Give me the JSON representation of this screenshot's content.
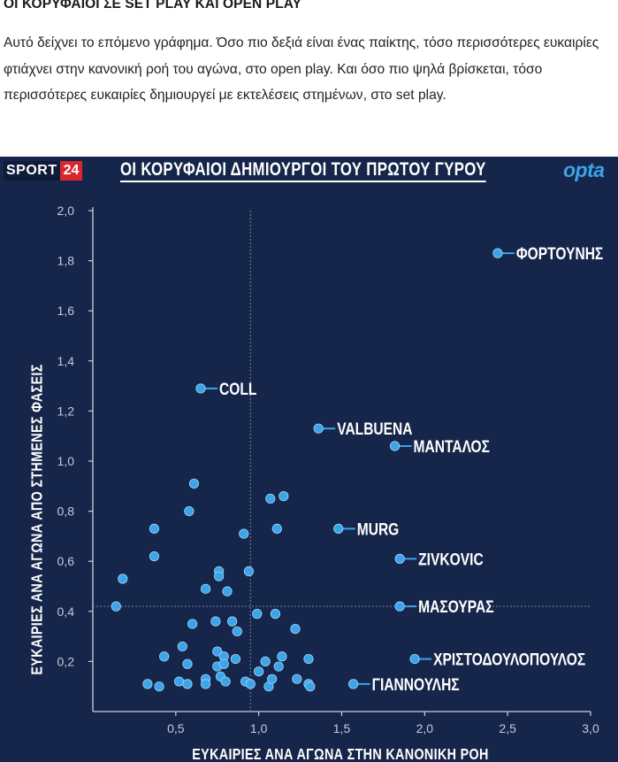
{
  "article": {
    "title": "ΟΙ ΚΟΡΥΦΑΙΟΙ ΣΕ SET PLAY ΚΑΙ OPEN PLAY",
    "body": "Αυτό δείχνει το επόμενο γράφημα. Όσο πιο δεξιά είναι ένας παίκτης, τόσο περισσότερες ευκαιρίες φτιάχνει στην κανονική ροή του αγώνα, στο open play. Και όσο πιο ψηλά βρίσκεται, τόσο περισσότερες ευκαιρίες δημιουργεί με εκτελέσεις στημένων, στο set play."
  },
  "branding": {
    "logo_word": "SPORT",
    "logo_number": "24",
    "opta": "opta"
  },
  "colors": {
    "background": "#16264a",
    "marker": "#3ba4ea",
    "accent_red": "#d8282e"
  },
  "chart_data": {
    "type": "scatter",
    "title": "ΟΙ ΚΟΡΥΦΑΙΟΙ ΔΗΜΙΟΥΡΓΟΙ ΤΟΥ ΠΡΩΤΟΥ ΓΥΡΟΥ",
    "xlabel": "ΕΥΚΑΙΡΙΕΣ ΑΝΑ ΑΓΩΝΑ ΣΤΗΝ ΚΑΝΟΝΙΚΗ ΡΟΗ",
    "ylabel": "ΕΥΚΑΙΡΙΕΣ ΑΝΑ ΑΓΩΝΑ ΑΠΟ ΣΤΗΜΕΝΕΣ ΦΑΣΕΙΣ",
    "xlim": [
      0,
      3.0
    ],
    "ylim": [
      0,
      2.0
    ],
    "xticks": [
      "0,5",
      "1,0",
      "1,5",
      "2,0",
      "2,5",
      "3,0"
    ],
    "yticks": [
      "0,2",
      "0,4",
      "0,6",
      "0,8",
      "1,0",
      "1,2",
      "1,4",
      "1,6",
      "1,8",
      "2,0"
    ],
    "reference_lines": {
      "x": 0.95,
      "y": 0.42
    },
    "labeled_points": [
      {
        "label": "ΦΟΡΤΟΥΝΗΣ",
        "x": 2.44,
        "y": 1.83
      },
      {
        "label": "COLL",
        "x": 0.65,
        "y": 1.29
      },
      {
        "label": "VALBUENA",
        "x": 1.36,
        "y": 1.13
      },
      {
        "label": "ΜΑΝΤΑΛΟΣ",
        "x": 1.82,
        "y": 1.06
      },
      {
        "label": "MURG",
        "x": 1.48,
        "y": 0.73
      },
      {
        "label": "ZIVKOVIC",
        "x": 1.85,
        "y": 0.61
      },
      {
        "label": "ΜΑΣΟΥΡΑΣ",
        "x": 1.85,
        "y": 0.42
      },
      {
        "label": "ΧΡΙΣΤΟΔΟΥΛΟΠΟΥΛΟΣ",
        "x": 1.94,
        "y": 0.21
      },
      {
        "label": "ΓΙΑΝΝΟΥΛΗΣ",
        "x": 1.57,
        "y": 0.11
      }
    ],
    "other_points": [
      [
        0.61,
        0.91
      ],
      [
        0.58,
        0.8
      ],
      [
        1.07,
        0.85
      ],
      [
        1.15,
        0.86
      ],
      [
        0.37,
        0.73
      ],
      [
        0.91,
        0.71
      ],
      [
        1.11,
        0.73
      ],
      [
        0.37,
        0.62
      ],
      [
        0.76,
        0.56
      ],
      [
        0.76,
        0.54
      ],
      [
        0.94,
        0.56
      ],
      [
        0.18,
        0.53
      ],
      [
        0.68,
        0.49
      ],
      [
        0.81,
        0.48
      ],
      [
        0.14,
        0.42
      ],
      [
        0.99,
        0.39
      ],
      [
        1.1,
        0.39
      ],
      [
        0.6,
        0.35
      ],
      [
        0.74,
        0.36
      ],
      [
        0.84,
        0.36
      ],
      [
        0.87,
        0.32
      ],
      [
        1.22,
        0.33
      ],
      [
        0.54,
        0.26
      ],
      [
        0.43,
        0.22
      ],
      [
        0.75,
        0.24
      ],
      [
        0.79,
        0.22
      ],
      [
        0.86,
        0.21
      ],
      [
        1.04,
        0.2
      ],
      [
        1.14,
        0.22
      ],
      [
        1.12,
        0.18
      ],
      [
        1.3,
        0.21
      ],
      [
        0.57,
        0.19
      ],
      [
        0.75,
        0.18
      ],
      [
        0.79,
        0.19
      ],
      [
        1.0,
        0.16
      ],
      [
        0.33,
        0.11
      ],
      [
        0.4,
        0.1
      ],
      [
        0.52,
        0.12
      ],
      [
        0.57,
        0.11
      ],
      [
        0.68,
        0.13
      ],
      [
        0.68,
        0.11
      ],
      [
        0.77,
        0.14
      ],
      [
        0.8,
        0.12
      ],
      [
        0.92,
        0.12
      ],
      [
        0.95,
        0.11
      ],
      [
        1.06,
        0.1
      ],
      [
        1.08,
        0.13
      ],
      [
        1.23,
        0.13
      ],
      [
        1.3,
        0.11
      ],
      [
        1.31,
        0.1
      ]
    ]
  }
}
